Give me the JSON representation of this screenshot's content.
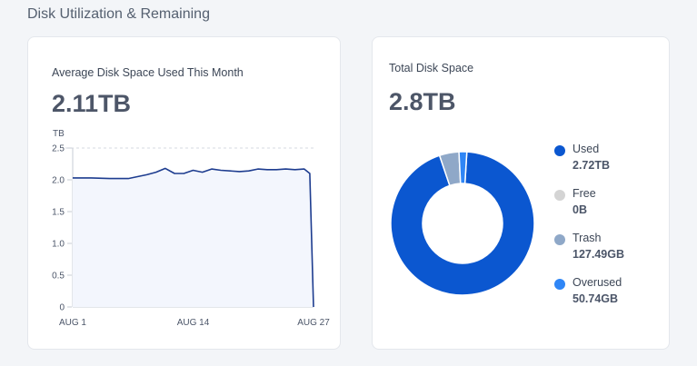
{
  "section": {
    "title": "Disk Utilization & Remaining"
  },
  "avg_card": {
    "label": "Average Disk Space Used This Month",
    "value": "2.11TB",
    "unit": "TB"
  },
  "total_card": {
    "label": "Total Disk Space",
    "value": "2.8TB",
    "legend": [
      {
        "name": "Used",
        "value": "2.72TB",
        "color": "#0b57d0"
      },
      {
        "name": "Free",
        "value": "0B",
        "color": "#d4d4d4"
      },
      {
        "name": "Trash",
        "value": "127.49GB",
        "color": "#8fa8c8"
      },
      {
        "name": "Overused",
        "value": "50.74GB",
        "color": "#2f86f6"
      }
    ]
  },
  "chart_data": [
    {
      "type": "area",
      "ylabel": "TB",
      "ylim": [
        0,
        2.5
      ],
      "yticks": [
        "0",
        "0.5",
        "1.0",
        "1.5",
        "2.0",
        "2.5"
      ],
      "xticks": [
        "AUG 1",
        "AUG 14",
        "AUG 27"
      ],
      "x": [
        1,
        3,
        5,
        7,
        8,
        9,
        10,
        11,
        12,
        13,
        14,
        15,
        16,
        17,
        18,
        19,
        20,
        21,
        22,
        23,
        24,
        25,
        26,
        26.6,
        27
      ],
      "values": [
        2.03,
        2.03,
        2.02,
        2.02,
        2.05,
        2.08,
        2.12,
        2.18,
        2.1,
        2.1,
        2.15,
        2.12,
        2.17,
        2.15,
        2.14,
        2.13,
        2.14,
        2.17,
        2.16,
        2.16,
        2.17,
        2.16,
        2.17,
        2.1,
        0
      ],
      "colors": {
        "line": "#1d3c8f",
        "fill": "#f3f6fd"
      }
    },
    {
      "type": "pie",
      "categories": [
        "Used",
        "Free",
        "Trash",
        "Overused"
      ],
      "values": [
        2.72,
        0,
        0.12749,
        0.05074
      ],
      "colors": [
        "#0b57d0",
        "#d4d4d4",
        "#8fa8c8",
        "#2f86f6"
      ]
    }
  ]
}
